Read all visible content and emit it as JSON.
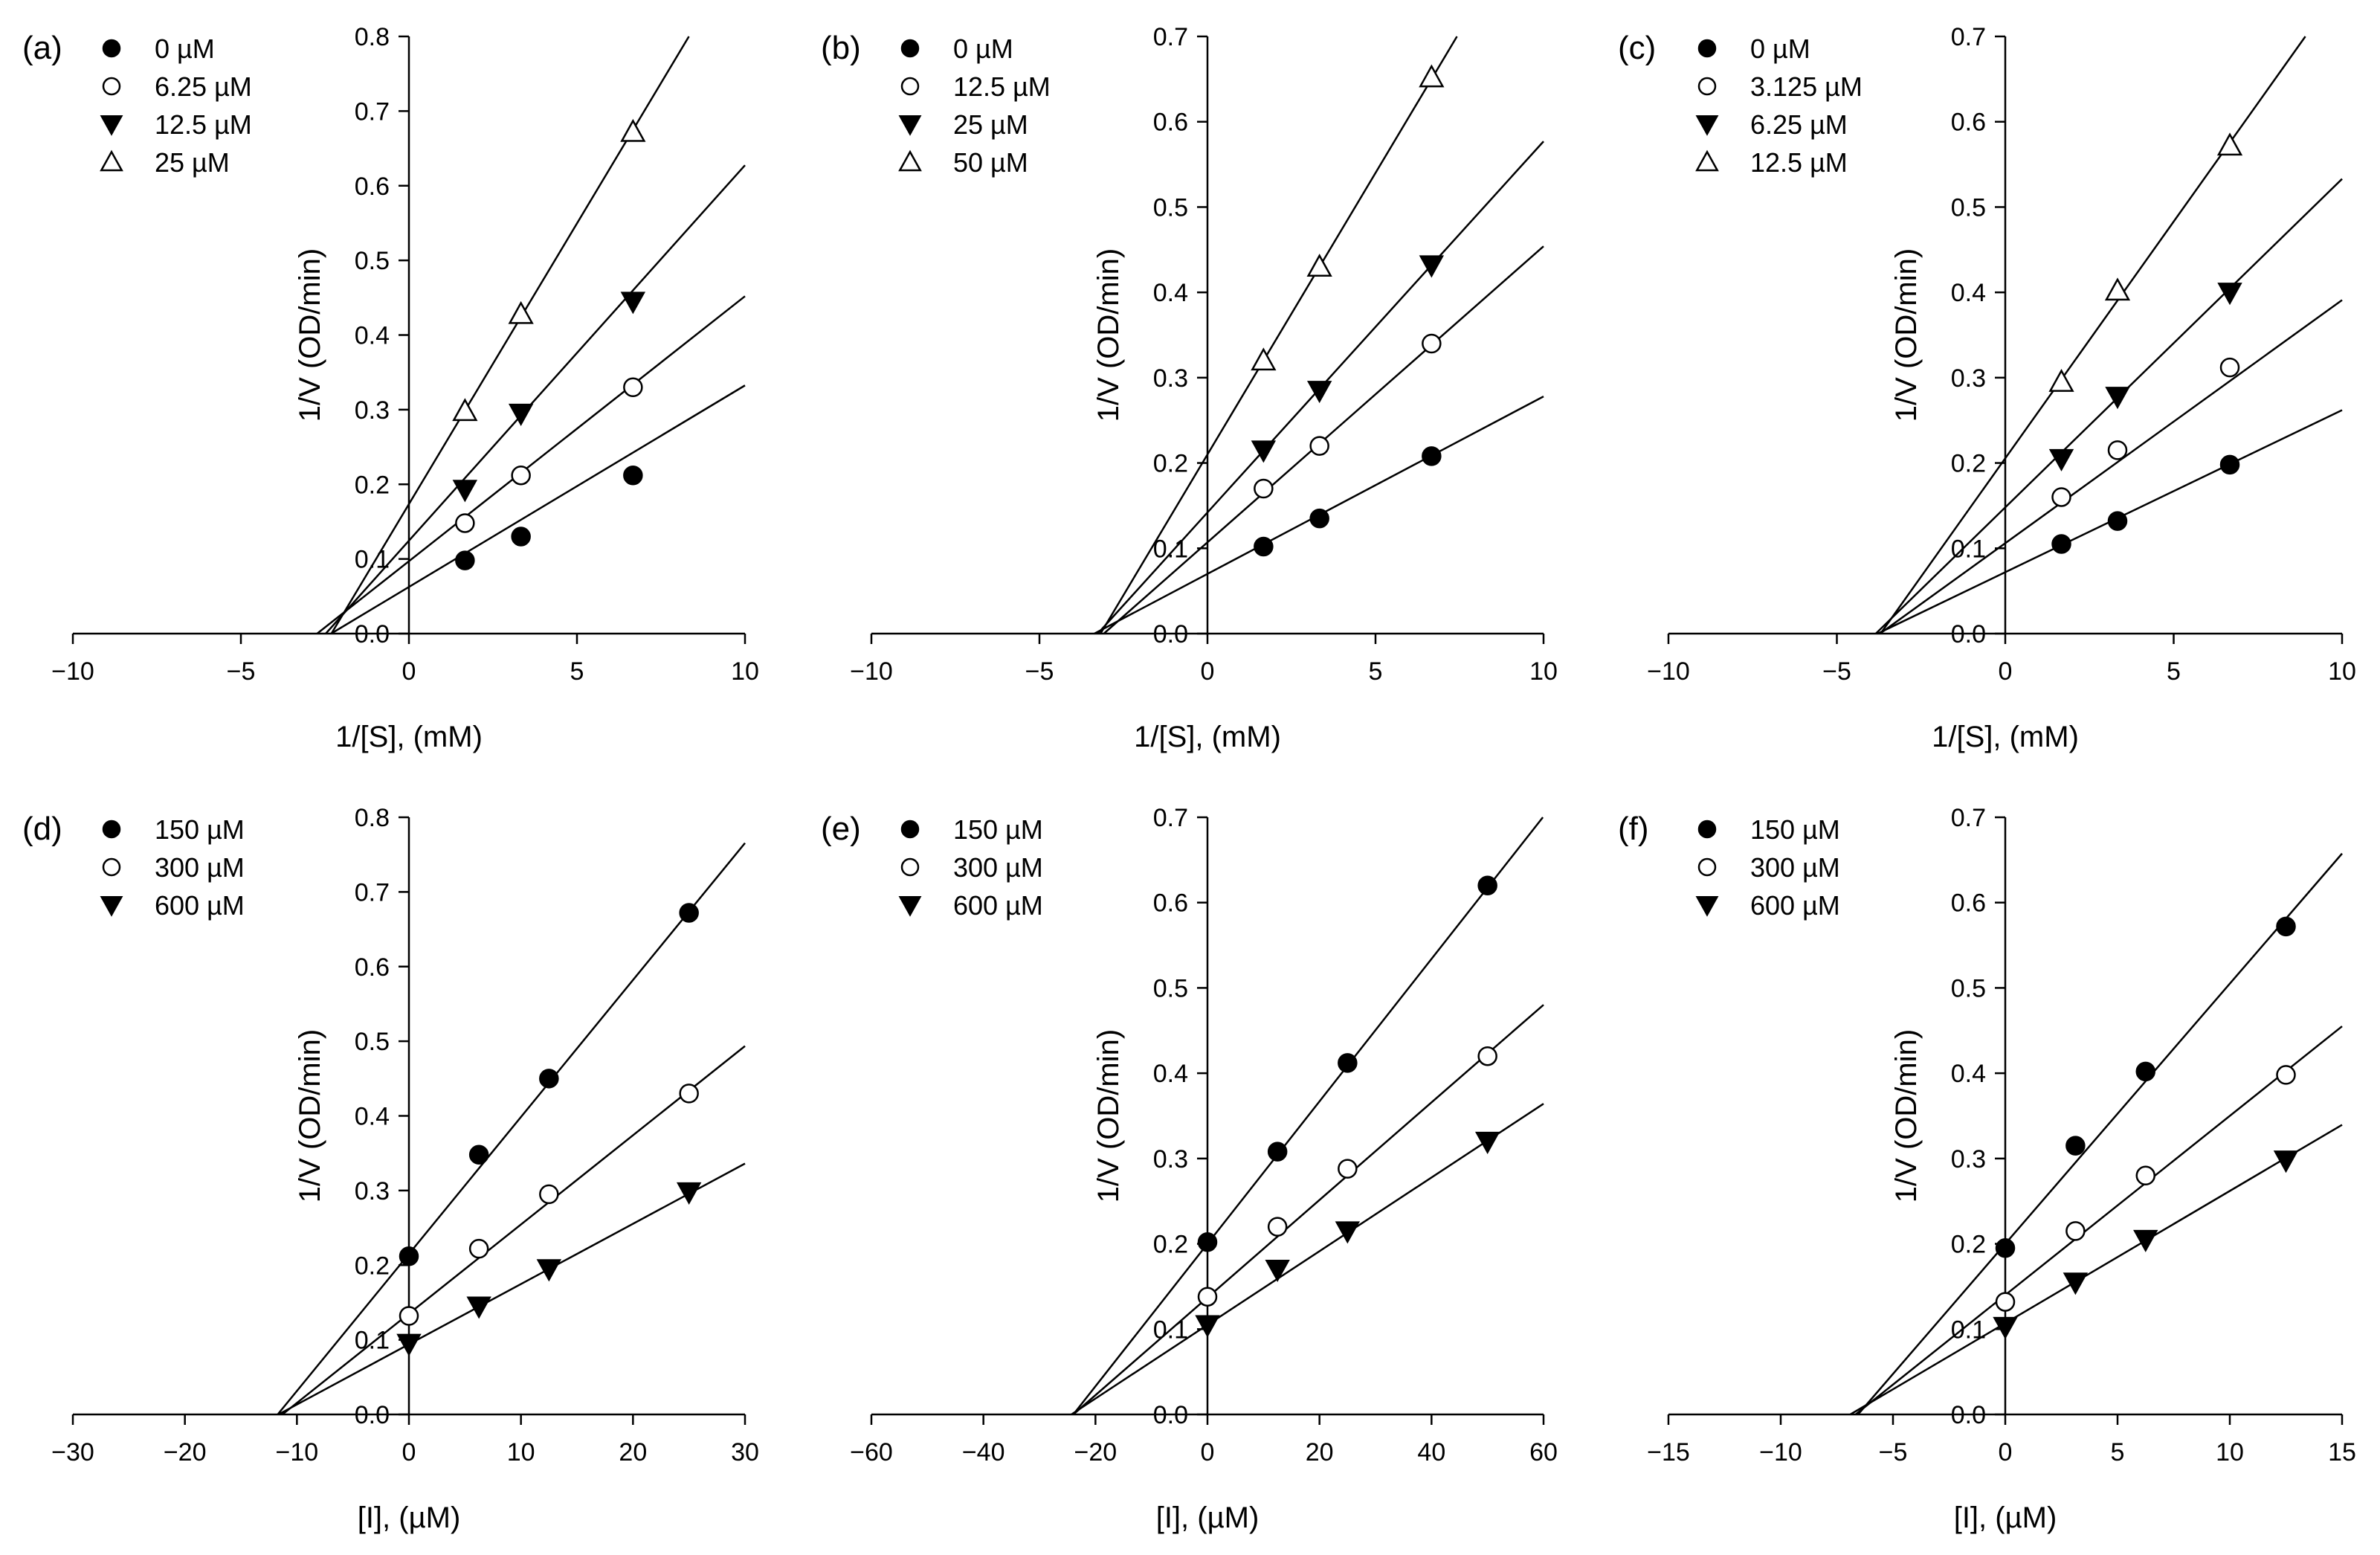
{
  "chart_data": [
    {
      "type": "scatter",
      "panel_label": "(a)",
      "xlabel": "1/[S], (mM)",
      "ylabel": "1/V (OD/min)",
      "xlim": [
        -10,
        10
      ],
      "ylim": [
        0,
        0.8
      ],
      "xticks": [
        -10,
        -5,
        0,
        5,
        10
      ],
      "yticks": [
        0.0,
        0.1,
        0.2,
        0.3,
        0.4,
        0.5,
        0.6,
        0.7,
        0.8
      ],
      "x_tick_labels": [
        "−10",
        "−5",
        "0",
        "5",
        "10"
      ],
      "y_tick_labels": [
        "0.0",
        "0.1",
        "0.2",
        "0.3",
        "0.4",
        "0.5",
        "0.6",
        "0.7",
        "0.8"
      ],
      "legend_position": "top-left",
      "series": [
        {
          "name": "0 µM",
          "marker": "filled-circle",
          "x": [
            1.667,
            3.333,
            6.667
          ],
          "y": [
            0.098,
            0.13,
            0.212
          ],
          "fit": {
            "slope": 0.027,
            "intercept": 0.0625
          }
        },
        {
          "name": "6.25 µM",
          "marker": "open-circle",
          "x": [
            1.667,
            3.333,
            6.667
          ],
          "y": [
            0.148,
            0.212,
            0.33
          ],
          "fit": {
            "slope": 0.0355,
            "intercept": 0.097
          }
        },
        {
          "name": "12.5 µM",
          "marker": "filled-triangle-down",
          "x": [
            1.667,
            3.333,
            6.667
          ],
          "y": [
            0.193,
            0.295,
            0.445
          ],
          "fit": {
            "slope": 0.0503,
            "intercept": 0.1245
          }
        },
        {
          "name": "25 µM",
          "marker": "open-triangle-up",
          "x": [
            1.667,
            3.333,
            6.667
          ],
          "y": [
            0.298,
            0.428,
            0.672
          ],
          "fit": {
            "slope": 0.0752,
            "intercept": 0.1735
          }
        }
      ]
    },
    {
      "type": "scatter",
      "panel_label": "(b)",
      "xlabel": "1/[S], (mM)",
      "ylabel": "1/V (OD/min)",
      "xlim": [
        -10,
        10
      ],
      "ylim": [
        0,
        0.7
      ],
      "xticks": [
        -10,
        -5,
        0,
        5,
        10
      ],
      "yticks": [
        0.0,
        0.1,
        0.2,
        0.3,
        0.4,
        0.5,
        0.6,
        0.7
      ],
      "x_tick_labels": [
        "−10",
        "−5",
        "0",
        "5",
        "10"
      ],
      "y_tick_labels": [
        "0.0",
        "0.1",
        "0.2",
        "0.3",
        "0.4",
        "0.5",
        "0.6",
        "0.7"
      ],
      "legend_position": "top-left",
      "series": [
        {
          "name": "0 µM",
          "marker": "filled-circle",
          "x": [
            1.667,
            3.333,
            6.667
          ],
          "y": [
            0.102,
            0.135,
            0.208
          ],
          "fit": {
            "slope": 0.0208,
            "intercept": 0.07
          }
        },
        {
          "name": "12.5 µM",
          "marker": "open-circle",
          "x": [
            1.667,
            3.333,
            6.667
          ],
          "y": [
            0.17,
            0.22,
            0.34
          ],
          "fit": {
            "slope": 0.0347,
            "intercept": 0.107
          }
        },
        {
          "name": "25 µM",
          "marker": "filled-triangle-down",
          "x": [
            1.667,
            3.333,
            6.667
          ],
          "y": [
            0.215,
            0.285,
            0.432
          ],
          "fit": {
            "slope": 0.0435,
            "intercept": 0.142
          }
        },
        {
          "name": "50 µM",
          "marker": "open-triangle-up",
          "x": [
            1.667,
            3.333,
            6.667
          ],
          "y": [
            0.32,
            0.43,
            0.652
          ],
          "fit": {
            "slope": 0.066,
            "intercept": 0.21
          }
        }
      ]
    },
    {
      "type": "scatter",
      "panel_label": "(c)",
      "xlabel": "1/[S], (mM)",
      "ylabel": "1/V (OD/min)",
      "xlim": [
        -10,
        10
      ],
      "ylim": [
        0,
        0.7
      ],
      "xticks": [
        -10,
        -5,
        0,
        5,
        10
      ],
      "yticks": [
        0.0,
        0.1,
        0.2,
        0.3,
        0.4,
        0.5,
        0.6,
        0.7
      ],
      "x_tick_labels": [
        "−10",
        "−5",
        "0",
        "5",
        "10"
      ],
      "y_tick_labels": [
        "0.0",
        "0.1",
        "0.2",
        "0.3",
        "0.4",
        "0.5",
        "0.6",
        "0.7"
      ],
      "legend_position": "top-left",
      "series": [
        {
          "name": "0 µM",
          "marker": "filled-circle",
          "x": [
            1.667,
            3.333,
            6.667
          ],
          "y": [
            0.105,
            0.132,
            0.198
          ],
          "fit": {
            "slope": 0.019,
            "intercept": 0.072
          }
        },
        {
          "name": "3.125 µM",
          "marker": "open-circle",
          "x": [
            1.667,
            3.333,
            6.667
          ],
          "y": [
            0.16,
            0.215,
            0.312
          ],
          "fit": {
            "slope": 0.0285,
            "intercept": 0.106
          }
        },
        {
          "name": "6.25 µM",
          "marker": "filled-triangle-down",
          "x": [
            1.667,
            3.333,
            6.667
          ],
          "y": [
            0.205,
            0.278,
            0.4
          ],
          "fit": {
            "slope": 0.0385,
            "intercept": 0.148
          }
        },
        {
          "name": "12.5 µM",
          "marker": "open-triangle-up",
          "x": [
            1.667,
            3.333,
            6.667
          ],
          "y": [
            0.295,
            0.402,
            0.572
          ],
          "fit": {
            "slope": 0.0555,
            "intercept": 0.2055
          }
        }
      ]
    },
    {
      "type": "scatter",
      "panel_label": "(d)",
      "xlabel": "[I], (µM)",
      "ylabel": "1/V (OD/min)",
      "xlim": [
        -30,
        30
      ],
      "ylim": [
        0,
        0.8
      ],
      "xticks": [
        -30,
        -20,
        -10,
        0,
        10,
        20,
        30
      ],
      "yticks": [
        0.0,
        0.1,
        0.2,
        0.3,
        0.4,
        0.5,
        0.6,
        0.7,
        0.8
      ],
      "x_tick_labels": [
        "−30",
        "−20",
        "−10",
        "0",
        "10",
        "20",
        "30"
      ],
      "y_tick_labels": [
        "0.0",
        "0.1",
        "0.2",
        "0.3",
        "0.4",
        "0.5",
        "0.6",
        "0.7",
        "0.8"
      ],
      "legend_position": "top-left",
      "series": [
        {
          "name": "150 µM",
          "marker": "filled-circle",
          "x": [
            0,
            6.25,
            12.5,
            25
          ],
          "y": [
            0.212,
            0.348,
            0.45,
            0.672
          ],
          "fit": {
            "slope": 0.01835,
            "intercept": 0.215
          }
        },
        {
          "name": "300 µM",
          "marker": "open-circle",
          "x": [
            0,
            6.25,
            12.5,
            25
          ],
          "y": [
            0.132,
            0.222,
            0.295,
            0.43
          ],
          "fit": {
            "slope": 0.01195,
            "intercept": 0.135
          }
        },
        {
          "name": "600 µM",
          "marker": "filled-triangle-down",
          "x": [
            0,
            6.25,
            12.5,
            25
          ],
          "y": [
            0.095,
            0.145,
            0.195,
            0.298
          ],
          "fit": {
            "slope": 0.00807,
            "intercept": 0.094
          }
        }
      ]
    },
    {
      "type": "scatter",
      "panel_label": "(e)",
      "xlabel": "[I], (µM)",
      "ylabel": "1/V (OD/min)",
      "xlim": [
        -60,
        60
      ],
      "ylim": [
        0,
        0.7
      ],
      "xticks": [
        -60,
        -40,
        -20,
        0,
        20,
        40,
        60
      ],
      "yticks": [
        0.0,
        0.1,
        0.2,
        0.3,
        0.4,
        0.5,
        0.6,
        0.7
      ],
      "x_tick_labels": [
        "−60",
        "−40",
        "−20",
        "0",
        "20",
        "40",
        "60"
      ],
      "y_tick_labels": [
        "0.0",
        "0.1",
        "0.2",
        "0.3",
        "0.4",
        "0.5",
        "0.6",
        "0.7"
      ],
      "legend_position": "top-left",
      "series": [
        {
          "name": "150 µM",
          "marker": "filled-circle",
          "x": [
            0,
            12.5,
            25,
            50
          ],
          "y": [
            0.202,
            0.308,
            0.412,
            0.62
          ],
          "fit": {
            "slope": 0.00835,
            "intercept": 0.2
          }
        },
        {
          "name": "300 µM",
          "marker": "open-circle",
          "x": [
            0,
            12.5,
            25,
            50
          ],
          "y": [
            0.138,
            0.22,
            0.288,
            0.42
          ],
          "fit": {
            "slope": 0.00572,
            "intercept": 0.137
          }
        },
        {
          "name": "600 µM",
          "marker": "filled-triangle-down",
          "x": [
            0,
            12.5,
            25,
            50
          ],
          "y": [
            0.105,
            0.17,
            0.215,
            0.32
          ],
          "fit": {
            "slope": 0.00432,
            "intercept": 0.105
          }
        }
      ]
    },
    {
      "type": "scatter",
      "panel_label": "(f)",
      "xlabel": "[I], (µM)",
      "ylabel": "1/V (OD/min)",
      "xlim": [
        -15,
        15
      ],
      "ylim": [
        0,
        0.7
      ],
      "xticks": [
        -15,
        -10,
        -5,
        0,
        5,
        10,
        15
      ],
      "yticks": [
        0.0,
        0.1,
        0.2,
        0.3,
        0.4,
        0.5,
        0.6,
        0.7
      ],
      "x_tick_labels": [
        "−15",
        "−10",
        "−5",
        "0",
        "5",
        "10",
        "15"
      ],
      "y_tick_labels": [
        "0.0",
        "0.1",
        "0.2",
        "0.3",
        "0.4",
        "0.5",
        "0.6",
        "0.7"
      ],
      "legend_position": "top-left",
      "series": [
        {
          "name": "150 µM",
          "marker": "filled-circle",
          "x": [
            0,
            3.125,
            6.25,
            12.5
          ],
          "y": [
            0.195,
            0.315,
            0.402,
            0.572
          ],
          "fit": {
            "slope": 0.0305,
            "intercept": 0.2
          }
        },
        {
          "name": "300 µM",
          "marker": "open-circle",
          "x": [
            0,
            3.125,
            6.25,
            12.5
          ],
          "y": [
            0.132,
            0.215,
            0.28,
            0.398
          ],
          "fit": {
            "slope": 0.021,
            "intercept": 0.14
          }
        },
        {
          "name": "600 µM",
          "marker": "filled-triangle-down",
          "x": [
            0,
            3.125,
            6.25,
            12.5
          ],
          "y": [
            0.103,
            0.155,
            0.205,
            0.298
          ],
          "fit": {
            "slope": 0.0155,
            "intercept": 0.107
          }
        }
      ]
    }
  ]
}
